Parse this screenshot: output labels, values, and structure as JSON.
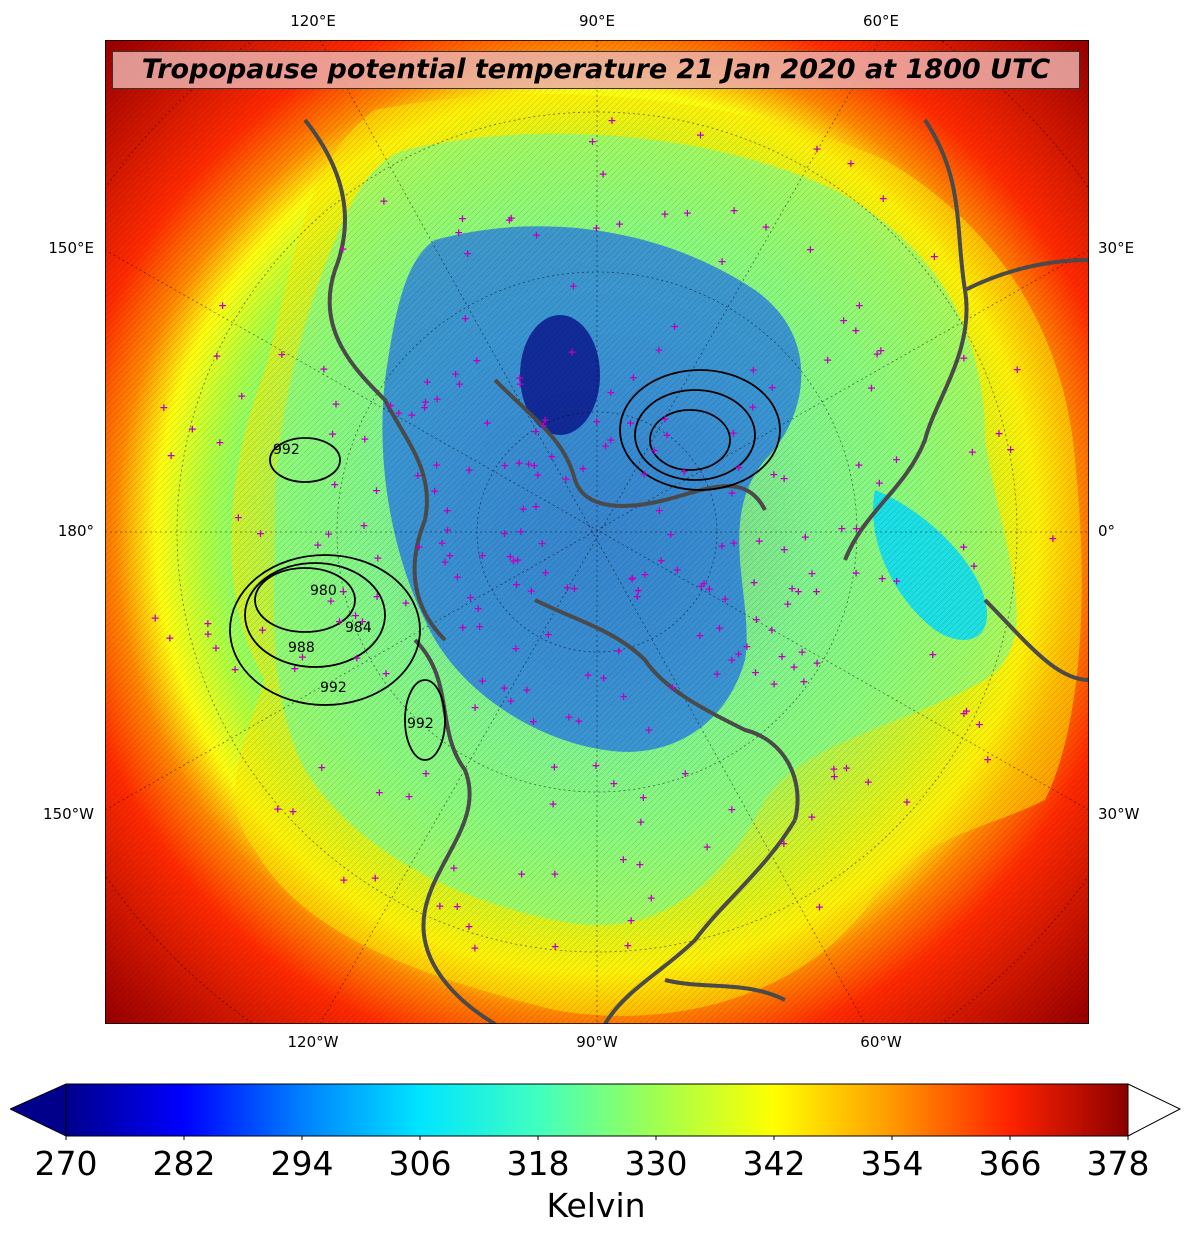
{
  "title": "Tropopause potential temperature 21 Jan 2020 at 1800 UTC",
  "lon_labels": {
    "top": [
      "120°E",
      "90°E",
      "60°E"
    ],
    "bottom": [
      "120°W",
      "90°W",
      "60°W"
    ],
    "left": [
      "150°E",
      "180°",
      "150°W"
    ],
    "right": [
      "30°E",
      "0°",
      "30°W"
    ]
  },
  "pressure_contours": [
    "992",
    "980",
    "984",
    "988",
    "992",
    "992"
  ],
  "colorbar": {
    "ticks": [
      "270",
      "282",
      "294",
      "306",
      "318",
      "330",
      "342",
      "354",
      "366",
      "378"
    ],
    "unit": "Kelvin",
    "colors": [
      "#00008b",
      "#0000ff",
      "#0080ff",
      "#00e5ff",
      "#40ffc0",
      "#a0ff50",
      "#ffff00",
      "#ff9900",
      "#ff2200",
      "#8b0000"
    ]
  },
  "style": {
    "coast_color": "#4a4a4a",
    "marker_color": "#c000c0"
  }
}
